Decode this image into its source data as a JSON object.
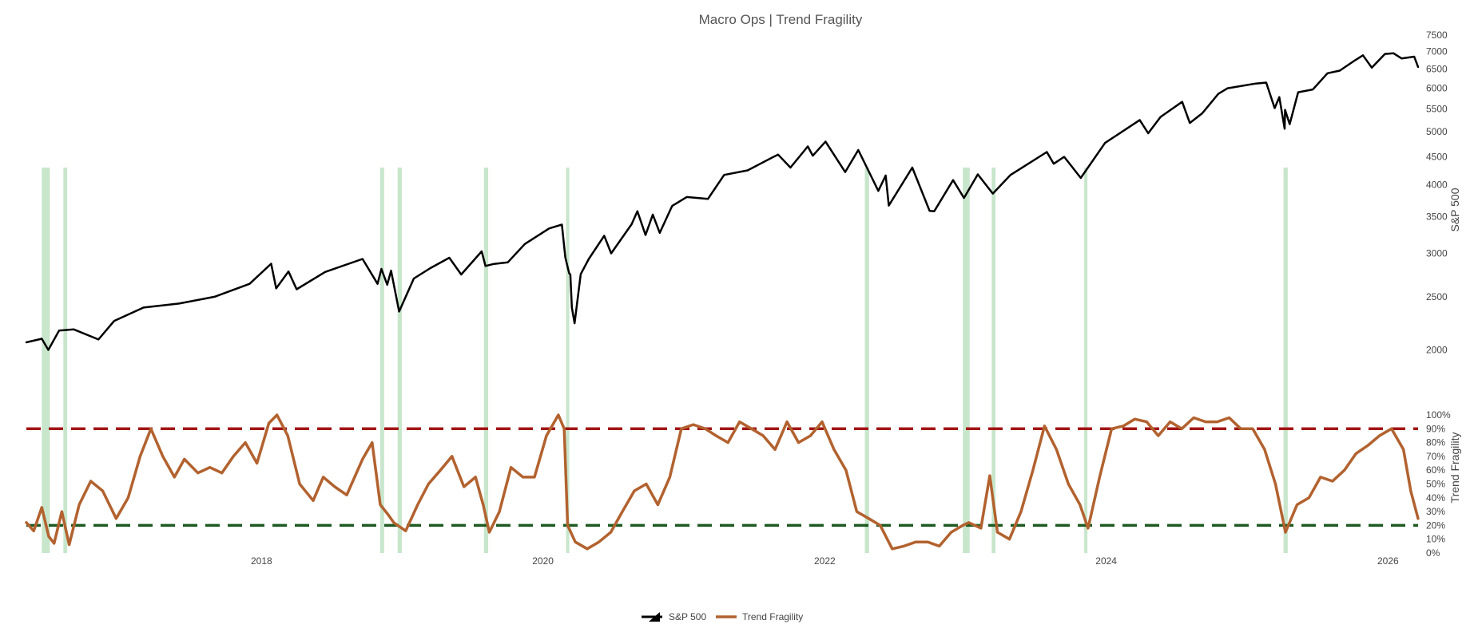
{
  "chart_data": {
    "title": "Macro Ops | Trend Fragility",
    "type": "line",
    "x_axis": {
      "range": [
        "2016-05-01",
        "2026-03-20"
      ],
      "tick_labels": [
        "2018",
        "2020",
        "2022",
        "2024",
        "2026"
      ]
    },
    "y_axis_price": {
      "label": "S&P 500",
      "scale": "log",
      "range": [
        1800,
        7600
      ],
      "tick_values": [
        2000,
        2500,
        3000,
        3500,
        4000,
        4500,
        5000,
        5500,
        6000,
        6500,
        7000,
        7500
      ],
      "tick_labels": [
        "2000",
        "2500",
        "3000",
        "3500",
        "4000",
        "4500",
        "5000",
        "5500",
        "6000",
        "6500",
        "7000",
        "7500"
      ]
    },
    "y_axis_fragility": {
      "label": "Trend Fragility",
      "range": [
        0,
        100
      ],
      "tick_values": [
        0,
        10,
        20,
        30,
        40,
        50,
        60,
        70,
        80,
        90,
        100
      ],
      "tick_labels": [
        "0%",
        "10%",
        "20%",
        "30%",
        "40%",
        "50%",
        "60%",
        "70%",
        "80%",
        "90%",
        "100%"
      ]
    },
    "series": [
      {
        "name": "S&P 500",
        "color": "#000000",
        "x": [
          "2016-05-01",
          "2016-06-10",
          "2016-06-27",
          "2016-07-25",
          "2016-09-01",
          "2016-11-04",
          "2016-12-15",
          "2017-03-01",
          "2017-06-01",
          "2017-09-01",
          "2017-12-01",
          "2018-01-26",
          "2018-02-08",
          "2018-03-12",
          "2018-04-02",
          "2018-06-15",
          "2018-09-20",
          "2018-10-29",
          "2018-11-08",
          "2018-11-23",
          "2018-12-03",
          "2018-12-24",
          "2019-01-31",
          "2019-03-15",
          "2019-05-03",
          "2019-06-03",
          "2019-07-26",
          "2019-08-05",
          "2019-08-27",
          "2019-10-02",
          "2019-11-15",
          "2020-01-17",
          "2020-02-19",
          "2020-02-28",
          "2020-03-09",
          "2020-03-12",
          "2020-03-16",
          "2020-03-23",
          "2020-04-08",
          "2020-04-29",
          "2020-06-08",
          "2020-06-26",
          "2020-08-18",
          "2020-09-02",
          "2020-09-23",
          "2020-10-12",
          "2020-10-30",
          "2020-12-01",
          "2021-01-08",
          "2021-03-04",
          "2021-04-15",
          "2021-06-15",
          "2021-08-16",
          "2021-09-02",
          "2021-10-04",
          "2021-11-18",
          "2021-12-01",
          "2022-01-03",
          "2022-02-23",
          "2022-03-29",
          "2022-05-20",
          "2022-06-08",
          "2022-06-16",
          "2022-08-16",
          "2022-09-30",
          "2022-10-12",
          "2022-11-30",
          "2022-12-28",
          "2023-02-02",
          "2023-03-13",
          "2023-04-28",
          "2023-07-31",
          "2023-08-18",
          "2023-09-14",
          "2023-10-27",
          "2023-12-29",
          "2024-03-28",
          "2024-04-19",
          "2024-05-21",
          "2024-07-16",
          "2024-08-05",
          "2024-09-06",
          "2024-10-18",
          "2024-11-11",
          "2025-01-23",
          "2025-02-19",
          "2025-03-13",
          "2025-03-25",
          "2025-04-08",
          "2025-04-09",
          "2025-04-21",
          "2025-05-13",
          "2025-06-20",
          "2025-07-28",
          "2025-08-29",
          "2025-10-08",
          "2025-10-28",
          "2025-11-20",
          "2025-12-24",
          "2026-01-15",
          "2026-02-05",
          "2026-03-10",
          "2026-03-20"
        ],
        "y": [
          2065,
          2096,
          2000,
          2170,
          2180,
          2090,
          2260,
          2390,
          2430,
          2500,
          2640,
          2872,
          2590,
          2780,
          2580,
          2775,
          2930,
          2640,
          2810,
          2630,
          2790,
          2350,
          2700,
          2820,
          2945,
          2745,
          3025,
          2845,
          2870,
          2890,
          3120,
          3330,
          3386,
          2950,
          2760,
          2745,
          2390,
          2237,
          2750,
          2930,
          3230,
          3000,
          3390,
          3580,
          3240,
          3530,
          3270,
          3660,
          3800,
          3770,
          4170,
          4250,
          4480,
          4540,
          4300,
          4700,
          4520,
          4797,
          4220,
          4630,
          3900,
          4160,
          3667,
          4300,
          3585,
          3580,
          4080,
          3785,
          4180,
          3855,
          4170,
          4590,
          4370,
          4500,
          4117,
          4770,
          5250,
          4967,
          5320,
          5667,
          5186,
          5400,
          5860,
          6000,
          6120,
          6144,
          5520,
          5780,
          5062,
          5480,
          5160,
          5900,
          5970,
          6390,
          6460,
          6750,
          6890,
          6540,
          6930,
          6950,
          6800,
          6850,
          6560
        ]
      },
      {
        "name": "Trend Fragility",
        "color": "#b2622f",
        "x": [
          "2016-05-01",
          "2016-05-20",
          "2016-06-10",
          "2016-06-28",
          "2016-07-12",
          "2016-08-01",
          "2016-08-20",
          "2016-09-15",
          "2016-10-15",
          "2016-11-15",
          "2016-12-20",
          "2017-01-20",
          "2017-02-20",
          "2017-03-20",
          "2017-04-20",
          "2017-05-20",
          "2017-06-15",
          "2017-07-20",
          "2017-08-20",
          "2017-09-20",
          "2017-10-20",
          "2017-11-20",
          "2017-12-20",
          "2018-01-20",
          "2018-02-10",
          "2018-03-10",
          "2018-04-10",
          "2018-05-15",
          "2018-06-10",
          "2018-07-10",
          "2018-08-10",
          "2018-09-20",
          "2018-10-15",
          "2018-11-05",
          "2018-11-25",
          "2018-12-10",
          "2019-01-10",
          "2019-02-10",
          "2019-03-10",
          "2019-04-10",
          "2019-05-10",
          "2019-06-10",
          "2019-07-10",
          "2019-07-30",
          "2019-08-15",
          "2019-09-10",
          "2019-10-10",
          "2019-11-10",
          "2019-12-10",
          "2020-01-10",
          "2020-02-10",
          "2020-02-25",
          "2020-03-05",
          "2020-03-25",
          "2020-04-25",
          "2020-05-25",
          "2020-06-25",
          "2020-07-25",
          "2020-08-25",
          "2020-09-25",
          "2020-10-25",
          "2020-11-25",
          "2020-12-25",
          "2021-01-25",
          "2021-02-25",
          "2021-03-25",
          "2021-04-25",
          "2021-05-25",
          "2021-06-25",
          "2021-07-25",
          "2021-08-25",
          "2021-09-25",
          "2021-10-25",
          "2021-11-25",
          "2021-12-25",
          "2022-01-25",
          "2022-02-25",
          "2022-03-25",
          "2022-04-25",
          "2022-05-25",
          "2022-06-25",
          "2022-07-25",
          "2022-08-25",
          "2022-09-25",
          "2022-10-25",
          "2022-11-25",
          "2022-12-25",
          "2023-01-10",
          "2023-02-10",
          "2023-03-05",
          "2023-03-25",
          "2023-04-25",
          "2023-05-25",
          "2023-06-25",
          "2023-07-25",
          "2023-08-25",
          "2023-09-25",
          "2023-10-25",
          "2023-11-15",
          "2023-12-15",
          "2024-01-15",
          "2024-02-15",
          "2024-03-15",
          "2024-04-15",
          "2024-05-15",
          "2024-06-15",
          "2024-07-15",
          "2024-08-15",
          "2024-09-15",
          "2024-10-15",
          "2024-11-15",
          "2024-12-15",
          "2025-01-15",
          "2025-02-15",
          "2025-03-15",
          "2025-04-10",
          "2025-05-10",
          "2025-06-10",
          "2025-07-10",
          "2025-08-10",
          "2025-09-10",
          "2025-10-10",
          "2025-11-10",
          "2025-12-10",
          "2026-01-10",
          "2026-02-10",
          "2026-03-01",
          "2026-03-20"
        ],
        "y": [
          22,
          16,
          33,
          12,
          7,
          30,
          6,
          35,
          52,
          45,
          25,
          40,
          70,
          90,
          70,
          55,
          68,
          58,
          62,
          58,
          70,
          80,
          65,
          94,
          100,
          85,
          50,
          38,
          55,
          48,
          42,
          68,
          80,
          35,
          28,
          22,
          16,
          35,
          50,
          60,
          70,
          48,
          55,
          35,
          15,
          30,
          62,
          55,
          55,
          85,
          100,
          90,
          20,
          8,
          3,
          8,
          15,
          30,
          45,
          50,
          35,
          55,
          90,
          93,
          90,
          85,
          80,
          95,
          90,
          85,
          75,
          95,
          80,
          85,
          95,
          75,
          60,
          30,
          25,
          20,
          3,
          5,
          8,
          8,
          5,
          15,
          20,
          22,
          18,
          56,
          15,
          10,
          30,
          60,
          92,
          75,
          50,
          35,
          18,
          55,
          90,
          92,
          97,
          95,
          85,
          95,
          90,
          98,
          95,
          95,
          98,
          90,
          90,
          75,
          50,
          15,
          35,
          40,
          55,
          52,
          60,
          72,
          78,
          85,
          90,
          75,
          45,
          25
        ]
      }
    ],
    "reference_lines": [
      {
        "y": 90,
        "color": "#a31515",
        "dash": "dashed"
      },
      {
        "y": 20,
        "color": "#1d5a21",
        "dash": "dashed"
      }
    ],
    "highlight_bands": [
      [
        "2016-06-10",
        "2016-07-01"
      ],
      [
        "2016-08-05",
        "2016-08-15"
      ],
      [
        "2018-11-05",
        "2018-11-15"
      ],
      [
        "2018-12-20",
        "2018-12-31"
      ],
      [
        "2019-08-01",
        "2019-08-12"
      ],
      [
        "2020-03-01",
        "2020-03-08"
      ],
      [
        "2022-04-15",
        "2022-04-26"
      ],
      [
        "2022-12-25",
        "2023-01-12"
      ],
      [
        "2023-03-10",
        "2023-03-20"
      ],
      [
        "2023-11-05",
        "2023-11-12"
      ],
      [
        "2025-04-05",
        "2025-04-16"
      ]
    ],
    "highlight_color": "#c8e6cc",
    "legend": {
      "placement": "bottom-center",
      "entries": [
        "S&P 500",
        "Trend Fragility"
      ]
    },
    "grid": false
  }
}
